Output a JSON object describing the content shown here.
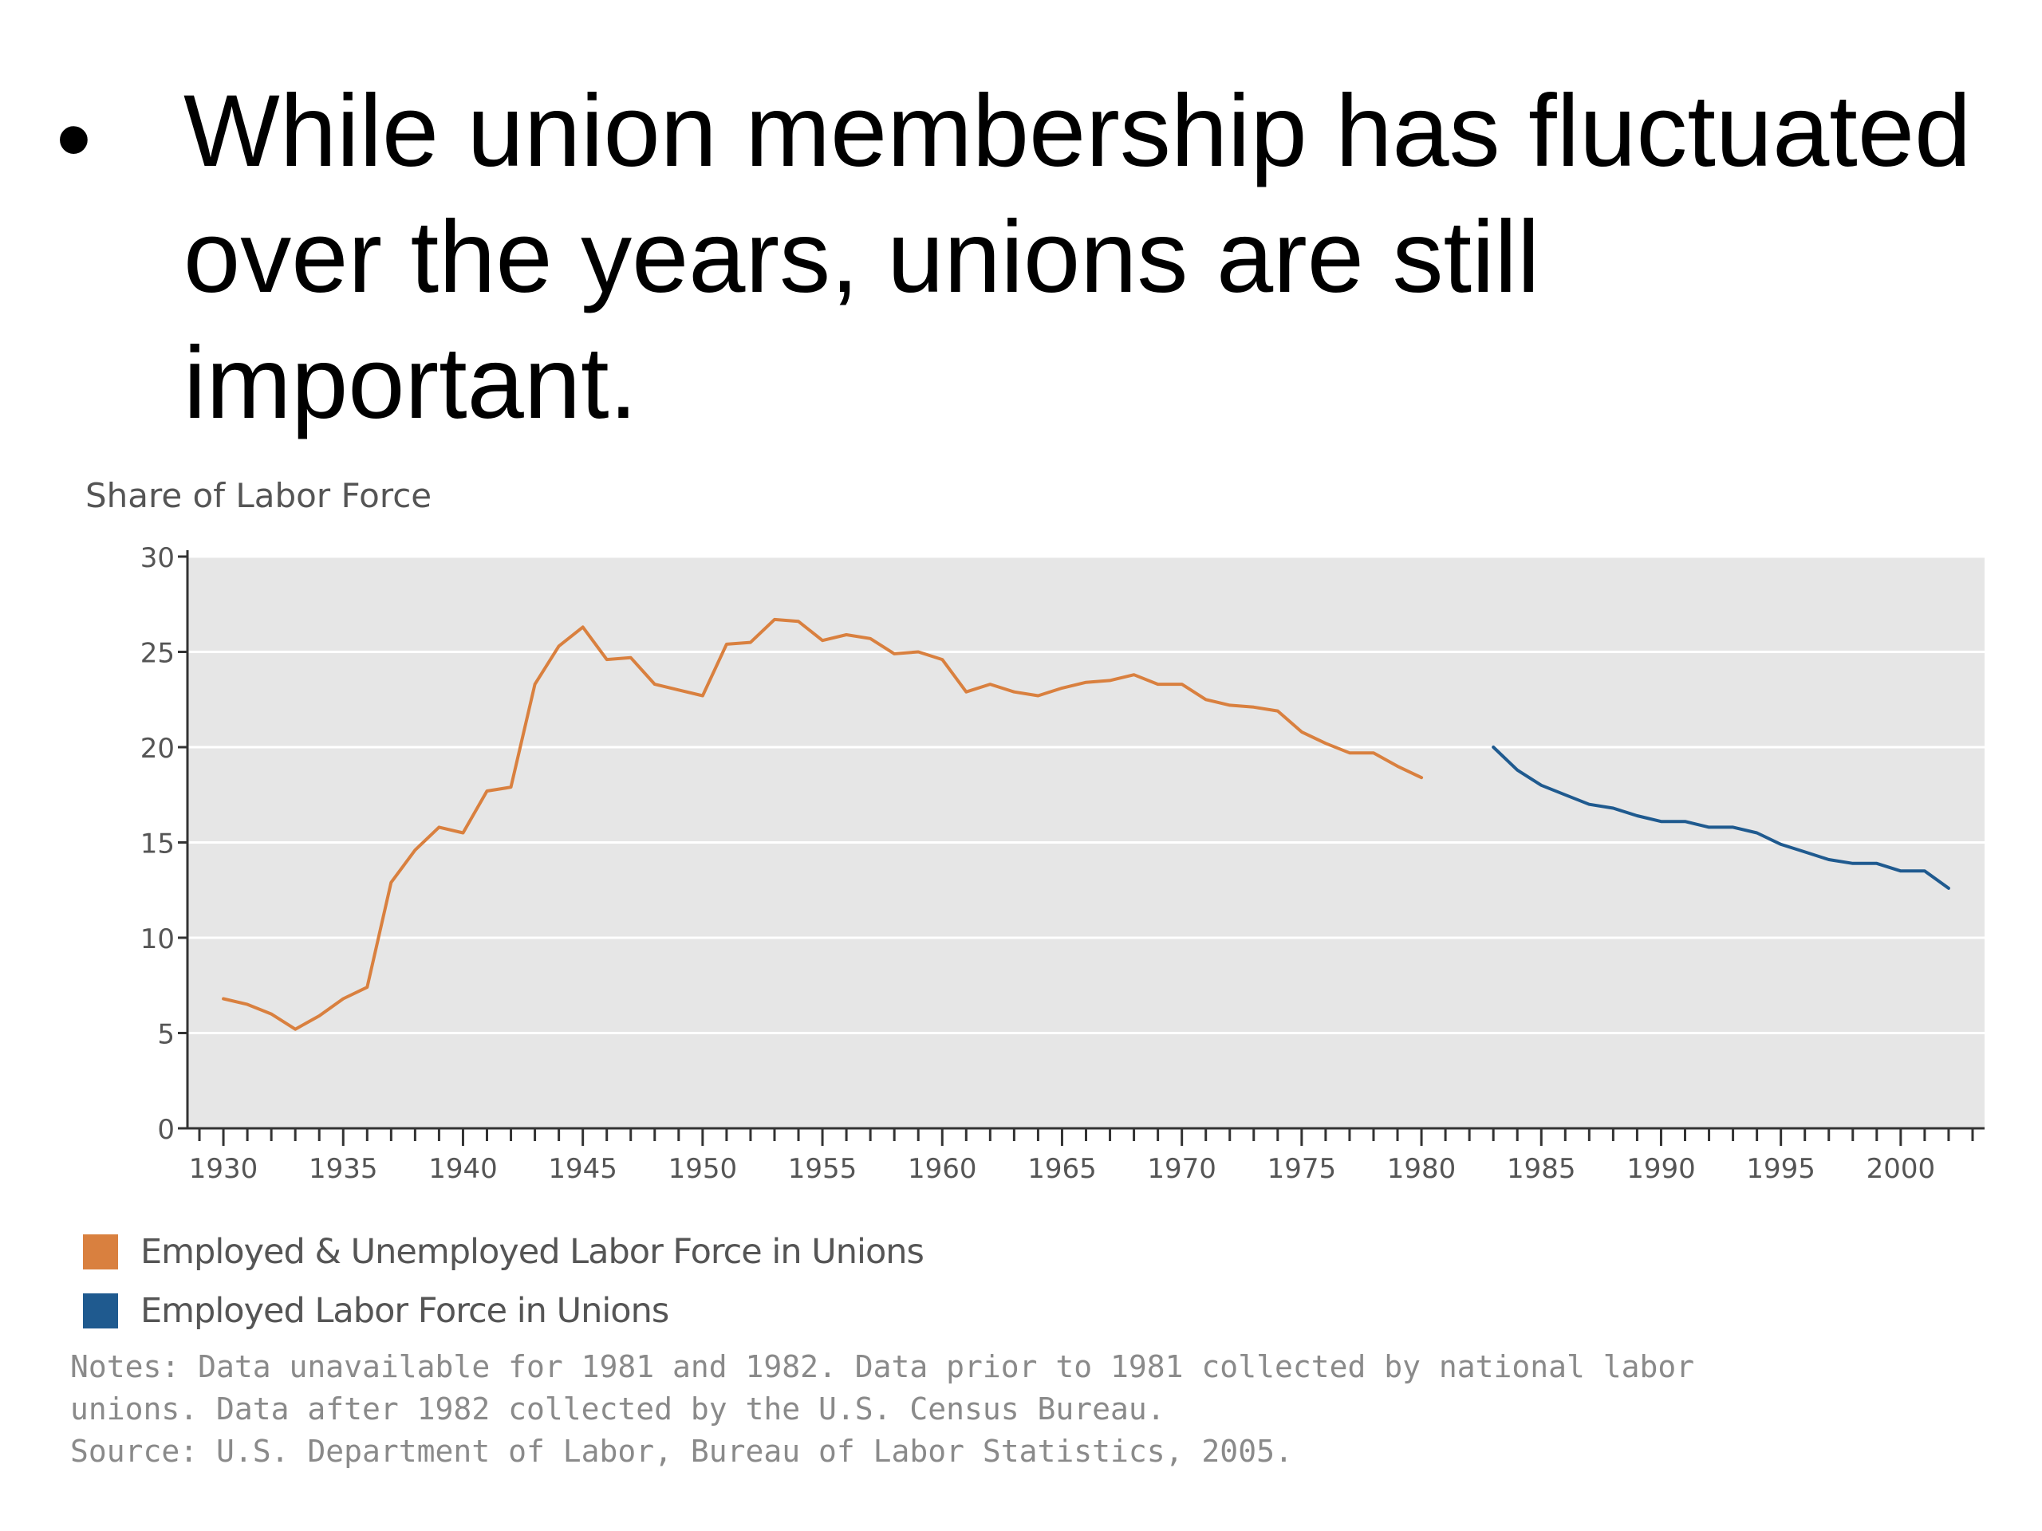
{
  "slide": {
    "bullet_symbol": "•",
    "bullet_text": "While union membership has fluctuated over the years, unions are still important."
  },
  "chart_data": {
    "type": "line",
    "ylabel": "Share of Labor Force",
    "ylim": [
      0,
      30
    ],
    "yticks": [
      0,
      5,
      10,
      15,
      20,
      25,
      30
    ],
    "xlim": [
      1928.5,
      2003.5
    ],
    "xticks": [
      1930,
      1935,
      1940,
      1945,
      1950,
      1955,
      1960,
      1965,
      1970,
      1975,
      1980,
      1985,
      1990,
      1995,
      2000
    ],
    "grid": true,
    "legend_position": "bottom-left",
    "background_color": "#e6e6e6",
    "series": [
      {
        "name": "Employed & Unemployed Labor Force in Unions",
        "color": "#d9803f",
        "x": [
          1930,
          1931,
          1932,
          1933,
          1934,
          1935,
          1936,
          1937,
          1938,
          1939,
          1940,
          1941,
          1942,
          1943,
          1944,
          1945,
          1946,
          1947,
          1948,
          1949,
          1950,
          1951,
          1952,
          1953,
          1954,
          1955,
          1956,
          1957,
          1958,
          1959,
          1960,
          1961,
          1962,
          1963,
          1964,
          1965,
          1966,
          1967,
          1968,
          1969,
          1970,
          1971,
          1972,
          1973,
          1974,
          1975,
          1976,
          1977,
          1978,
          1979,
          1980
        ],
        "y": [
          6.8,
          6.5,
          6.0,
          5.2,
          5.9,
          6.8,
          7.4,
          12.9,
          14.6,
          15.8,
          15.5,
          17.7,
          17.9,
          23.3,
          25.3,
          26.3,
          24.6,
          24.7,
          23.3,
          23.0,
          22.7,
          25.4,
          25.5,
          26.7,
          26.6,
          25.6,
          25.9,
          25.7,
          24.9,
          25.0,
          24.6,
          22.9,
          23.3,
          22.9,
          22.7,
          23.1,
          23.4,
          23.5,
          23.8,
          23.3,
          23.3,
          22.5,
          22.2,
          22.1,
          21.9,
          20.8,
          20.2,
          19.7,
          19.7,
          19.0,
          18.4
        ]
      },
      {
        "name": "Employed Labor Force in Unions",
        "color": "#1f5a8f",
        "x": [
          1983,
          1984,
          1985,
          1986,
          1987,
          1988,
          1989,
          1990,
          1991,
          1992,
          1993,
          1994,
          1995,
          1996,
          1997,
          1998,
          1999,
          2000,
          2001,
          2002
        ],
        "y": [
          20.0,
          18.8,
          18.0,
          17.5,
          17.0,
          16.8,
          16.4,
          16.1,
          16.1,
          15.8,
          15.8,
          15.5,
          14.9,
          14.5,
          14.1,
          13.9,
          13.9,
          13.5,
          13.5,
          12.6
        ]
      }
    ],
    "notes": [
      "Notes: Data unavailable for 1981 and 1982. Data prior to 1981 collected by national labor",
      "unions. Data after 1982 collected by the U.S. Census Bureau.",
      "Source: U.S. Department of Labor, Bureau of Labor Statistics, 2005."
    ]
  }
}
